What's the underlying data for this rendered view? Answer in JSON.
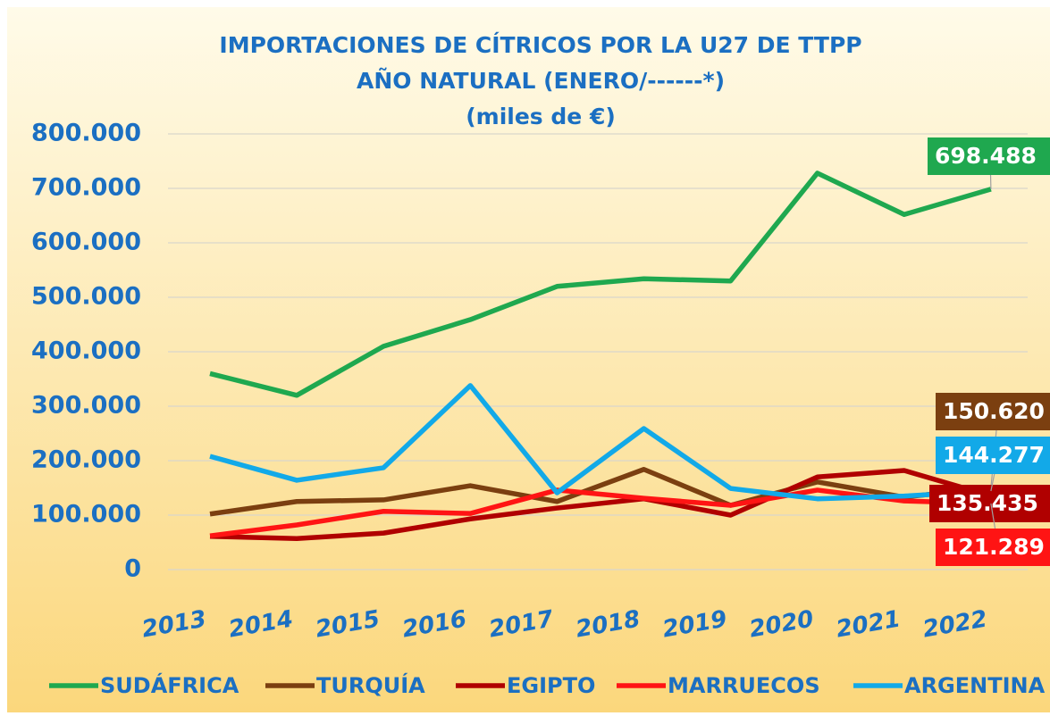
{
  "chart_data": {
    "type": "line",
    "title": "IMPORTACIONES DE CÍTRICOS POR LA U27 DE TTPP",
    "subtitle": [
      "AÑO NATURAL (ENERO/------*)",
      "(miles de €)"
    ],
    "categories": [
      "2013",
      "2014",
      "2015",
      "2016",
      "2017",
      "2018",
      "2019",
      "2020",
      "2021",
      "2022"
    ],
    "ylim": [
      0,
      800000
    ],
    "yticks": [
      0,
      {
        "value": 100000,
        "label": "100.000"
      },
      {
        "value": 200000,
        "label": "200.000"
      },
      {
        "value": 300000,
        "label": "300.000"
      },
      {
        "value": 400000,
        "label": "400.000"
      },
      {
        "value": 500000,
        "label": "500.000"
      },
      {
        "value": 600000,
        "label": "600.000"
      },
      {
        "value": 700000,
        "label": "700.000"
      },
      {
        "value": 800000,
        "label": "800.000"
      }
    ],
    "grid": true,
    "legend": "bottom",
    "series": [
      {
        "name": "SUDÁFRICA",
        "color": "#1fa84f",
        "values": [
          360000,
          320000,
          410000,
          459000,
          520000,
          534000,
          530000,
          728000,
          652000,
          698488
        ],
        "value_labels": [
          null,
          null,
          null,
          null,
          null,
          null,
          null,
          null,
          null,
          "698.488"
        ]
      },
      {
        "name": "TURQUÍA",
        "color": "#7b3f10",
        "values": [
          102000,
          125000,
          128000,
          154000,
          125000,
          184000,
          118000,
          161000,
          133000,
          150620
        ],
        "value_labels": [
          null,
          null,
          null,
          null,
          null,
          null,
          null,
          null,
          null,
          "150.620"
        ]
      },
      {
        "name": "EGIPTO",
        "color": "#b00000",
        "values": [
          61000,
          57000,
          67000,
          93000,
          113000,
          130000,
          100000,
          170000,
          182000,
          135435
        ],
        "value_labels": [
          null,
          null,
          null,
          null,
          null,
          null,
          null,
          null,
          null,
          "135.435"
        ]
      },
      {
        "name": "MARRUECOS",
        "color": "#ff1414",
        "values": [
          62000,
          82000,
          107000,
          103000,
          146000,
          131000,
          118000,
          146000,
          126000,
          121289
        ],
        "value_labels": [
          null,
          null,
          null,
          null,
          null,
          null,
          null,
          null,
          null,
          "121.289"
        ]
      },
      {
        "name": "ARGENTINA",
        "color": "#12a9e8",
        "values": [
          208000,
          164000,
          187000,
          338000,
          141000,
          259000,
          149000,
          130000,
          135000,
          144277
        ],
        "value_labels": [
          null,
          null,
          null,
          null,
          null,
          null,
          null,
          null,
          null,
          "144.277"
        ]
      }
    ]
  }
}
